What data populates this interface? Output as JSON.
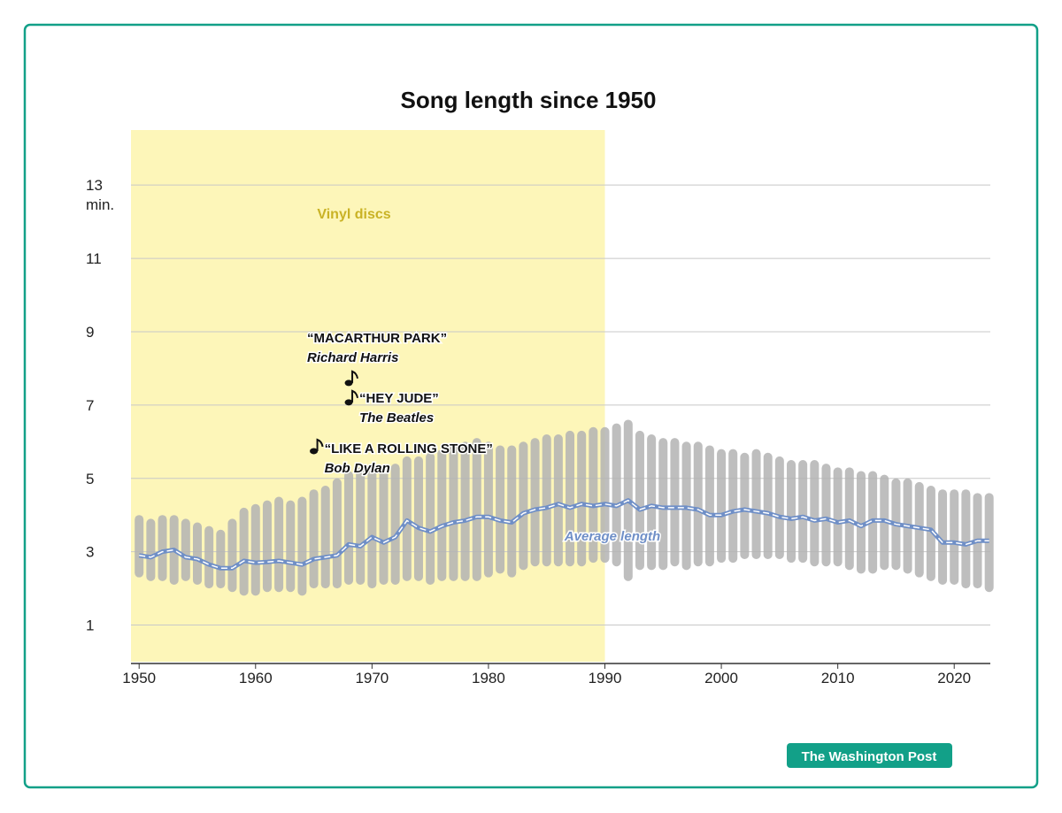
{
  "chart_data": {
    "type": "range-line",
    "title": "Song length since 1950",
    "x": [
      1950,
      1951,
      1952,
      1953,
      1954,
      1955,
      1956,
      1957,
      1958,
      1959,
      1960,
      1961,
      1962,
      1963,
      1964,
      1965,
      1966,
      1967,
      1968,
      1969,
      1970,
      1971,
      1972,
      1973,
      1974,
      1975,
      1976,
      1977,
      1978,
      1979,
      1980,
      1981,
      1982,
      1983,
      1984,
      1985,
      1986,
      1987,
      1988,
      1989,
      1990,
      1991,
      1992,
      1993,
      1994,
      1995,
      1996,
      1997,
      1998,
      1999,
      2000,
      2001,
      2002,
      2003,
      2004,
      2005,
      2006,
      2007,
      2008,
      2009,
      2010,
      2011,
      2012,
      2013,
      2014,
      2015,
      2016,
      2017,
      2018,
      2019,
      2020,
      2021,
      2022,
      2023
    ],
    "series": [
      {
        "name": "Average length",
        "color": "#6f8fc7",
        "values": [
          2.9,
          2.85,
          3.0,
          3.05,
          2.85,
          2.8,
          2.65,
          2.55,
          2.55,
          2.75,
          2.7,
          2.72,
          2.75,
          2.7,
          2.65,
          2.8,
          2.85,
          2.9,
          3.2,
          3.15,
          3.4,
          3.25,
          3.4,
          3.85,
          3.65,
          3.55,
          3.7,
          3.8,
          3.85,
          3.95,
          3.95,
          3.85,
          3.8,
          4.05,
          4.15,
          4.2,
          4.3,
          4.2,
          4.3,
          4.25,
          4.3,
          4.25,
          4.4,
          4.15,
          4.25,
          4.2,
          4.2,
          4.2,
          4.15,
          4.0,
          4.0,
          4.1,
          4.15,
          4.1,
          4.05,
          3.95,
          3.9,
          3.95,
          3.85,
          3.9,
          3.8,
          3.85,
          3.7,
          3.85,
          3.85,
          3.75,
          3.7,
          3.65,
          3.6,
          3.25,
          3.25,
          3.2,
          3.3,
          3.3
        ]
      }
    ],
    "song_range": {
      "color": "#b3b3b3",
      "low": [
        2.3,
        2.2,
        2.2,
        2.1,
        2.2,
        2.1,
        2.0,
        2.0,
        1.9,
        1.8,
        1.8,
        1.9,
        1.9,
        1.9,
        1.8,
        2.0,
        2.0,
        2.0,
        2.1,
        2.1,
        2.0,
        2.1,
        2.1,
        2.2,
        2.2,
        2.1,
        2.2,
        2.2,
        2.2,
        2.2,
        2.3,
        2.4,
        2.3,
        2.5,
        2.6,
        2.6,
        2.6,
        2.6,
        2.6,
        2.7,
        2.7,
        2.6,
        2.2,
        2.5,
        2.5,
        2.5,
        2.6,
        2.5,
        2.6,
        2.6,
        2.7,
        2.7,
        2.8,
        2.8,
        2.8,
        2.8,
        2.7,
        2.7,
        2.6,
        2.6,
        2.6,
        2.5,
        2.4,
        2.4,
        2.5,
        2.5,
        2.4,
        2.3,
        2.2,
        2.1,
        2.1,
        2.0,
        2.0,
        1.9
      ],
      "high": [
        4.0,
        3.9,
        4.0,
        4.0,
        3.9,
        3.8,
        3.7,
        3.6,
        3.9,
        4.2,
        4.3,
        4.4,
        4.5,
        4.4,
        4.5,
        4.7,
        4.8,
        5.0,
        5.2,
        5.3,
        5.4,
        5.3,
        5.4,
        5.6,
        5.6,
        5.7,
        5.8,
        5.9,
        6.0,
        6.1,
        6.0,
        5.9,
        5.9,
        6.0,
        6.1,
        6.2,
        6.2,
        6.3,
        6.3,
        6.4,
        6.4,
        6.5,
        6.6,
        6.3,
        6.2,
        6.1,
        6.1,
        6.0,
        6.0,
        5.9,
        5.8,
        5.8,
        5.7,
        5.8,
        5.7,
        5.6,
        5.5,
        5.5,
        5.5,
        5.4,
        5.3,
        5.3,
        5.2,
        5.2,
        5.1,
        5.0,
        5.0,
        4.9,
        4.8,
        4.7,
        4.7,
        4.7,
        4.6,
        4.6
      ]
    },
    "shade": {
      "label": "Vinyl discs",
      "x": [
        1949.3,
        1990
      ],
      "color": "#fdf6b9"
    },
    "annotations": [
      {
        "title": "“MACARTHUR PARK”",
        "artist": "Richard Harris",
        "x": 1968,
        "y": 7.7
      },
      {
        "title": "“HEY JUDE”",
        "artist": "The Beatles",
        "x": 1968,
        "y": 7.17
      },
      {
        "title": "“LIKE A ROLLING STONE”",
        "artist": "Bob Dylan",
        "x": 1965,
        "y": 5.84
      }
    ],
    "xlim": [
      1949.3,
      2023.1
    ],
    "ylim": [
      0,
      14.5
    ],
    "xticks": [
      1950,
      1960,
      1970,
      1980,
      1990,
      2000,
      2010,
      2020
    ],
    "yticks": [
      1,
      3,
      5,
      7,
      9,
      11,
      {
        "value": 13,
        "label": "13\nmin."
      }
    ],
    "grid": true,
    "source": "The Washington Post"
  }
}
